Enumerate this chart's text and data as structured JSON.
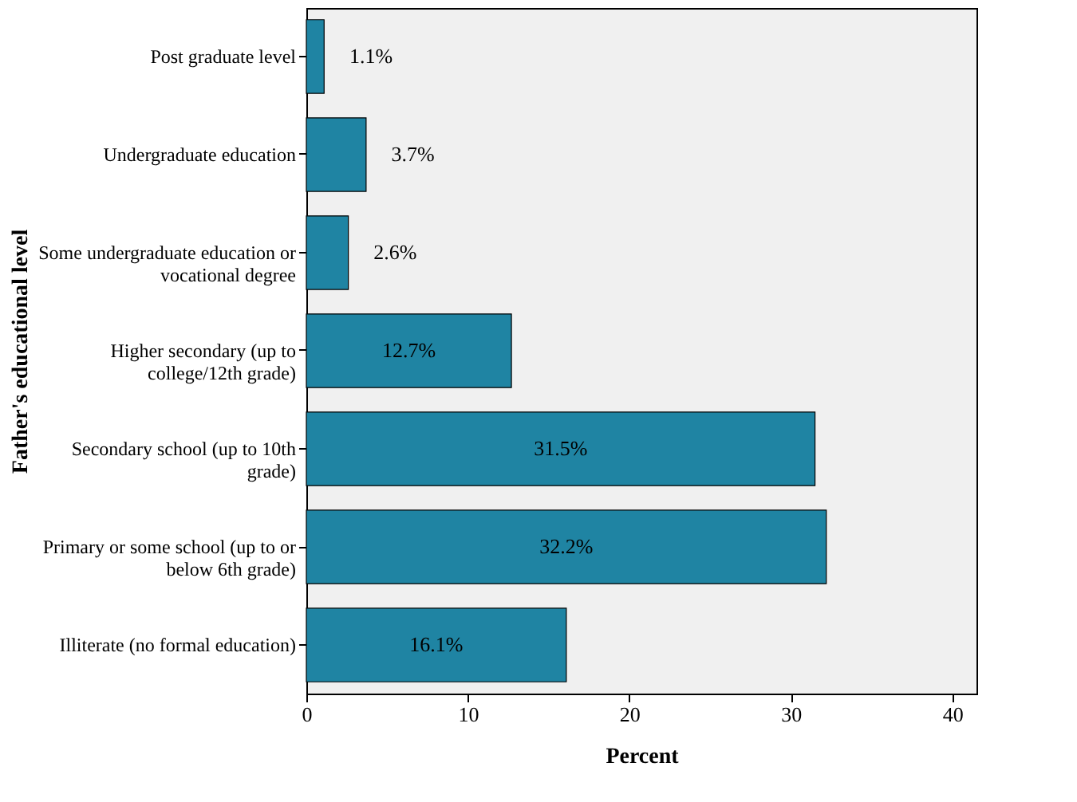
{
  "chart_data": {
    "type": "bar",
    "orientation": "horizontal",
    "xlabel": "Percent",
    "ylabel": "Father's educational level",
    "categories": [
      "Post graduate level",
      "Undergraduate education",
      "Some undergraduate education or\nvocational degree",
      "Higher secondary (up to\ncollege/12th grade)",
      "Secondary school (up to 10th\ngrade)",
      "Primary or some school (up to or\nbelow 6th grade)",
      "Illiterate (no formal education)"
    ],
    "values": [
      1.1,
      3.7,
      2.6,
      12.7,
      31.5,
      32.2,
      16.1
    ],
    "value_labels": [
      "1.1%",
      "3.7%",
      "2.6%",
      "12.7%",
      "31.5%",
      "32.2%",
      "16.1%"
    ],
    "color": "#1f84a3",
    "xlim": [
      0,
      41.5
    ],
    "xticks": [
      0,
      10,
      20,
      30,
      40
    ],
    "grid": false
  }
}
